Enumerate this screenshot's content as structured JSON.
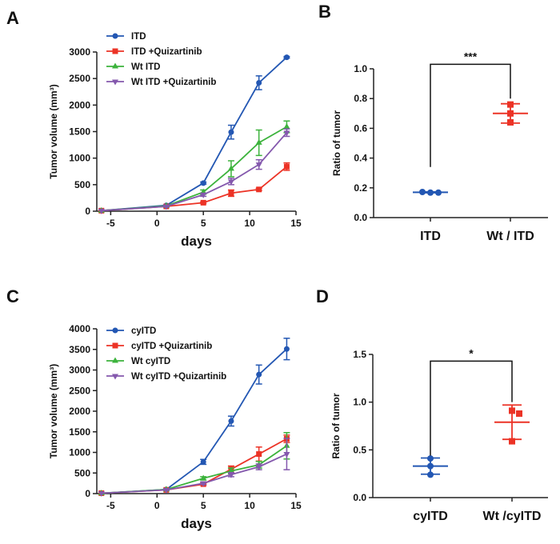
{
  "panel_labels": [
    "A",
    "B",
    "C",
    "D"
  ],
  "chart_data": [
    {
      "type": "line",
      "panel": "A",
      "title": "",
      "xlabel": "days",
      "ylabel": "Tumor volume (mm³)",
      "xlim": [
        -6.5,
        15
      ],
      "ylim": [
        0,
        3000
      ],
      "xticks": [
        -5,
        0,
        5,
        10,
        15
      ],
      "yticks": [
        0,
        500,
        1000,
        1500,
        2000,
        2500,
        3000
      ],
      "legend": "top-left",
      "series": [
        {
          "name": "ITD",
          "color": "#2357b3",
          "marker": "circle",
          "x": [
            -6,
            1,
            5,
            8,
            11,
            14
          ],
          "y": [
            10,
            110,
            530,
            1490,
            2420,
            2900
          ],
          "err": [
            0,
            10,
            20,
            130,
            130,
            15
          ]
        },
        {
          "name": "ITD +Quizartinib",
          "color": "#ec3326",
          "marker": "square",
          "x": [
            -6,
            1,
            5,
            8,
            11,
            14
          ],
          "y": [
            10,
            90,
            160,
            340,
            410,
            840
          ],
          "err": [
            0,
            10,
            15,
            60,
            20,
            70
          ]
        },
        {
          "name": "Wt ITD",
          "color": "#3cb33c",
          "marker": "triangle",
          "x": [
            -6,
            1,
            5,
            8,
            11,
            14
          ],
          "y": [
            10,
            100,
            360,
            800,
            1290,
            1590
          ],
          "err": [
            0,
            10,
            40,
            150,
            240,
            110
          ]
        },
        {
          "name": "Wt ITD +Quizartinib",
          "color": "#8458ad",
          "marker": "triangle-down",
          "x": [
            -6,
            1,
            5,
            8,
            11,
            14
          ],
          "y": [
            10,
            90,
            310,
            560,
            880,
            1480
          ],
          "err": [
            0,
            10,
            30,
            60,
            90,
            70
          ]
        }
      ]
    },
    {
      "type": "scatter",
      "panel": "B",
      "title": "",
      "xlabel": "",
      "ylabel": "Ratio of tumor",
      "ylim": [
        0,
        1.0
      ],
      "yticks": [
        "0.0",
        "0.2",
        "0.4",
        "0.6",
        "0.8",
        "1.0"
      ],
      "categories": [
        "ITD",
        "Wt / ITD"
      ],
      "groups": [
        {
          "category": "ITD",
          "color": "#2357b3",
          "marker": "circle",
          "points": [
            0.172,
            0.168,
            0.168
          ],
          "mean": 0.17,
          "sd": 0.003
        },
        {
          "category": "Wt / ITD",
          "color": "#ec3326",
          "marker": "square",
          "points": [
            0.76,
            0.7,
            0.64
          ],
          "mean": 0.7,
          "sd": 0.065
        }
      ],
      "significance": "***"
    },
    {
      "type": "line",
      "panel": "C",
      "title": "",
      "xlabel": "days",
      "ylabel": "Tumor volume (mm³)",
      "xlim": [
        -6.5,
        15
      ],
      "ylim": [
        0,
        4000
      ],
      "xticks": [
        -5,
        0,
        5,
        10,
        15
      ],
      "yticks": [
        0,
        500,
        1000,
        1500,
        2000,
        2500,
        3000,
        3500,
        4000
      ],
      "legend": "top-left",
      "series": [
        {
          "name": "cyITD",
          "color": "#2357b3",
          "marker": "circle",
          "x": [
            -6,
            1,
            5,
            8,
            11,
            14
          ],
          "y": [
            10,
            100,
            770,
            1760,
            2890,
            3510
          ],
          "err": [
            0,
            10,
            60,
            120,
            230,
            260
          ]
        },
        {
          "name": "cyITD +Quizartinib",
          "color": "#ec3326",
          "marker": "square",
          "x": [
            -6,
            1,
            5,
            8,
            11,
            14
          ],
          "y": [
            10,
            90,
            230,
            590,
            960,
            1330
          ],
          "err": [
            0,
            10,
            25,
            80,
            170,
            90
          ]
        },
        {
          "name": "Wt cyITD",
          "color": "#3cb33c",
          "marker": "triangle",
          "x": [
            -6,
            1,
            5,
            8,
            11,
            14
          ],
          "y": [
            10,
            100,
            370,
            550,
            700,
            1160
          ],
          "err": [
            0,
            10,
            40,
            70,
            80,
            320
          ]
        },
        {
          "name": "Wt cyITD +Quizartinib",
          "color": "#8458ad",
          "marker": "triangle-down",
          "x": [
            -6,
            1,
            5,
            8,
            11,
            14
          ],
          "y": [
            10,
            90,
            250,
            460,
            650,
            960
          ],
          "err": [
            0,
            10,
            30,
            50,
            70,
            380
          ]
        }
      ]
    },
    {
      "type": "scatter",
      "panel": "D",
      "title": "",
      "xlabel": "",
      "ylabel": "Ratio of tumor",
      "ylim": [
        0,
        1.5
      ],
      "yticks": [
        "0.0",
        "0.5",
        "1.0",
        "1.5"
      ],
      "categories": [
        "cyITD",
        "Wt /cyITD"
      ],
      "groups": [
        {
          "category": "cyITD",
          "color": "#2357b3",
          "marker": "circle",
          "points": [
            0.41,
            0.33,
            0.24
          ],
          "mean": 0.33,
          "sd": 0.085
        },
        {
          "category": "Wt /cyITD",
          "color": "#ec3326",
          "marker": "square",
          "points": [
            0.91,
            0.88,
            0.59
          ],
          "mean": 0.79,
          "sd": 0.18
        }
      ],
      "significance": "*"
    }
  ]
}
